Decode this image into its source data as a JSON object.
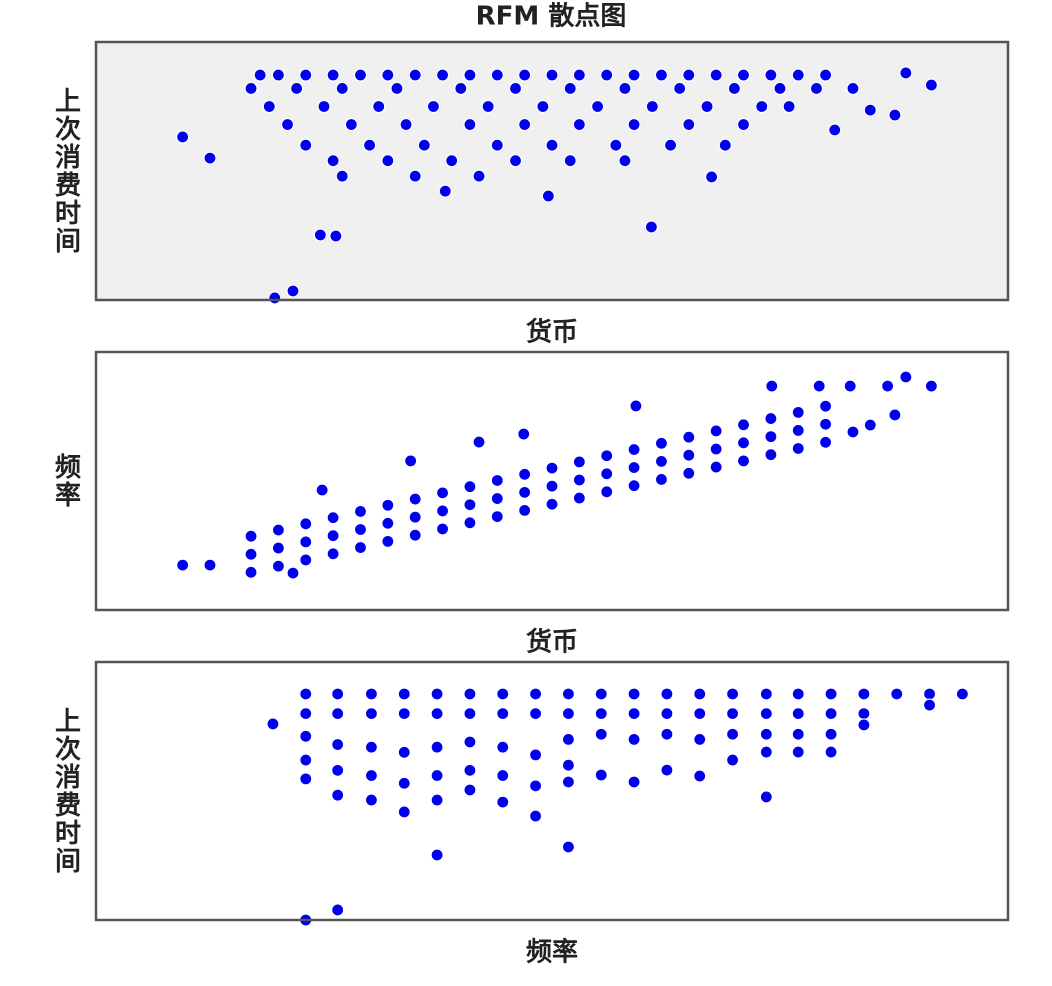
{
  "chart_data": [
    {
      "type": "scatter",
      "title": "RFM 散点图",
      "x_label": "货币",
      "y_label": "上次消费时间",
      "color": "#0000ee",
      "background": "#f0f0f0",
      "xlim": [
        0,
        100
      ],
      "ylim": [
        0,
        100
      ],
      "x": [
        18,
        20,
        23,
        26,
        29,
        32,
        35,
        38,
        41,
        44,
        47,
        50,
        53,
        56,
        59,
        62,
        65,
        68,
        71,
        74,
        77,
        80,
        17,
        22,
        27,
        33,
        40,
        46,
        52,
        58,
        64,
        70,
        75,
        79,
        83,
        19,
        25,
        31,
        37,
        43,
        49,
        55,
        61,
        67,
        73,
        76,
        21,
        28,
        34,
        41,
        47,
        53,
        59,
        65,
        71,
        23,
        30,
        36,
        44,
        50,
        57,
        63,
        69,
        26,
        32,
        39,
        46,
        52,
        58,
        27,
        35,
        42,
        9.5,
        12.5,
        19.6,
        21.6,
        24.6,
        26.3,
        38.3,
        49.6,
        60.9,
        67.5,
        88.8,
        91.6,
        87.6,
        84.9,
        81.0
      ],
      "y": [
        87.2,
        87.2,
        87.2,
        87.2,
        87.2,
        87.2,
        87.2,
        87.2,
        87.2,
        87.2,
        87.2,
        87.2,
        87.2,
        87.2,
        87.2,
        87.2,
        87.2,
        87.2,
        87.2,
        87.2,
        87.2,
        87.2,
        82,
        82,
        82,
        82,
        82,
        82,
        82,
        82,
        82,
        82,
        82,
        82,
        82,
        75,
        75,
        75,
        75,
        75,
        75,
        75,
        75,
        75,
        75,
        75,
        68,
        68,
        68,
        68,
        68,
        68,
        68,
        68,
        68,
        60,
        60,
        60,
        60,
        60,
        60,
        60,
        60,
        54,
        54,
        54,
        54,
        54,
        54,
        48,
        48,
        48,
        63.2,
        55.0,
        0.8,
        3.5,
        25.2,
        24.8,
        42.2,
        40.3,
        28.3,
        47.7,
        88.0,
        83.3,
        71.7,
        73.6,
        65.9
      ]
    },
    {
      "type": "scatter",
      "x_label": "货币",
      "y_label": "频率",
      "color": "#0000ee",
      "background": "#ffffff",
      "xlim": [
        0,
        100
      ],
      "ylim": [
        0,
        100
      ],
      "x": [
        17,
        17,
        17,
        20,
        20,
        20,
        23,
        23,
        23,
        26,
        26,
        26,
        29,
        29,
        29,
        32,
        32,
        32,
        35,
        35,
        35,
        38,
        38,
        38,
        41,
        41,
        41,
        44,
        44,
        44,
        47,
        47,
        47,
        50,
        50,
        50,
        53,
        53,
        53,
        56,
        56,
        56,
        59,
        59,
        59,
        62,
        62,
        62,
        65,
        65,
        65,
        68,
        68,
        68,
        71,
        71,
        71,
        74,
        74,
        74,
        77,
        77,
        77,
        80,
        80,
        80,
        9.5,
        12.5,
        21.6,
        88.8,
        91.6,
        74.1,
        79.3,
        82.7,
        86.8,
        87.6,
        84.9,
        83.0,
        59.2,
        24.8,
        34.5,
        42.0,
        46.9
      ],
      "y": [
        14.6,
        21.6,
        28.6,
        17,
        24,
        31,
        19.4,
        26.4,
        33.4,
        21.8,
        28.8,
        35.8,
        24.2,
        31.2,
        38.2,
        26.6,
        33.6,
        40.6,
        29,
        36,
        43,
        31.4,
        38.4,
        45.4,
        33.8,
        40.8,
        47.8,
        36.2,
        43.2,
        50.2,
        38.6,
        45.6,
        52.6,
        41,
        48,
        55,
        43.4,
        50.4,
        57.4,
        45.8,
        52.8,
        59.8,
        48.2,
        55.2,
        62.2,
        50.6,
        57.6,
        64.6,
        53,
        60,
        67,
        55.4,
        62.4,
        69.4,
        57.8,
        64.8,
        71.8,
        60.2,
        67.2,
        74.2,
        62.6,
        69.6,
        76.6,
        65,
        72,
        79,
        17.4,
        17.4,
        14.3,
        90.3,
        86.8,
        86.8,
        86.8,
        86.8,
        86.8,
        75.6,
        71.7,
        69.0,
        79.1,
        46.5,
        57.8,
        65.1,
        68.2
      ]
    },
    {
      "type": "scatter",
      "x_label": "频率",
      "y_label": "上次消费时间",
      "color": "#0000ee",
      "background": "#ffffff",
      "xlim": [
        0,
        100
      ],
      "ylim": [
        0,
        100
      ],
      "x": [
        23.0,
        23.0,
        23.0,
        23.0,
        23.0,
        26.5,
        26.5,
        26.5,
        26.5,
        26.5,
        30.2,
        30.2,
        30.2,
        30.2,
        30.2,
        33.8,
        33.8,
        33.8,
        33.8,
        33.8,
        37.4,
        37.4,
        37.4,
        37.4,
        37.4,
        41.0,
        41.0,
        41.0,
        41.0,
        41.0,
        44.6,
        44.6,
        44.6,
        44.6,
        44.6,
        48.2,
        48.2,
        48.2,
        48.2,
        48.2,
        51.8,
        51.8,
        51.8,
        51.8,
        51.8,
        55.4,
        55.4,
        55.4,
        55.4,
        59.0,
        59.0,
        59.0,
        59.0,
        62.6,
        62.6,
        62.6,
        62.6,
        66.2,
        66.2,
        66.2,
        66.2,
        69.8,
        69.8,
        69.8,
        69.8,
        73.5,
        73.5,
        73.5,
        73.5,
        77.0,
        77.0,
        77.0,
        77.0,
        80.6,
        80.6,
        80.6,
        80.6,
        84.2,
        84.2,
        84.2,
        87.8,
        91.4,
        91.4,
        95.0,
        19.4,
        23.0,
        26.5,
        37.4,
        51.8,
        73.5
      ],
      "y": [
        87.6,
        80,
        71.2,
        62,
        54.7,
        87.6,
        80,
        68,
        58,
        48.4,
        87.6,
        80,
        67,
        56,
        46.5,
        87.6,
        80,
        65,
        53,
        41.9,
        87.6,
        80,
        67,
        56,
        46.5,
        87.6,
        80,
        69,
        58,
        50.4,
        87.6,
        80,
        67,
        56,
        45.7,
        87.6,
        80,
        64,
        52,
        40.3,
        87.6,
        80,
        70,
        60,
        53.5,
        87.6,
        80,
        72,
        56.2,
        87.6,
        80,
        70,
        53.5,
        87.6,
        80,
        72,
        58.1,
        87.6,
        80,
        70,
        55.8,
        87.6,
        80,
        72,
        62.0,
        87.6,
        80,
        72,
        65.1,
        87.6,
        80,
        72,
        65.1,
        87.6,
        80,
        72,
        65.1,
        87.6,
        80,
        75.6,
        87.6,
        87.6,
        83.3,
        87.6,
        76.0,
        0,
        3.9,
        25.2,
        28.3,
        47.7
      ]
    }
  ]
}
